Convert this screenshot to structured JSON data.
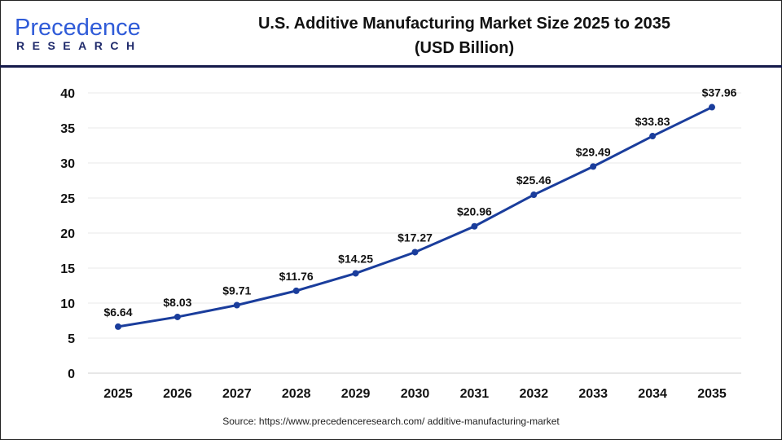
{
  "logo": {
    "top": "Precedence",
    "bottom": "RESEARCH"
  },
  "title_line1": "U.S. Additive Manufacturing Market Size 2025 to 2035",
  "title_line2": "(USD Billion)",
  "source": "Source: https://www.precedenceresearch.com/ additive-manufacturing-market",
  "colors": {
    "line": "#1a3d9c",
    "marker": "#1a3d9c",
    "grid": "#e8e8e8",
    "header_rule": "#141a4a"
  },
  "chart_data": {
    "type": "line",
    "title": "U.S. Additive Manufacturing Market Size 2025 to 2035 (USD Billion)",
    "categories": [
      "2025",
      "2026",
      "2027",
      "2028",
      "2029",
      "2030",
      "2031",
      "2032",
      "2033",
      "2034",
      "2035"
    ],
    "values": [
      6.64,
      8.03,
      9.71,
      11.76,
      14.25,
      17.27,
      20.96,
      25.46,
      29.49,
      33.83,
      37.96
    ],
    "data_labels": [
      "$6.64",
      "$8.03",
      "$9.71",
      "$11.76",
      "$14.25",
      "$17.27",
      "$20.96",
      "$25.46",
      "$29.49",
      "$33.83",
      "$37.96"
    ],
    "yticks": [
      "0",
      "5",
      "10",
      "15",
      "20",
      "25",
      "30",
      "35",
      "40"
    ],
    "ylim": [
      0,
      40
    ],
    "grid": true,
    "xlabel": "",
    "ylabel": ""
  }
}
